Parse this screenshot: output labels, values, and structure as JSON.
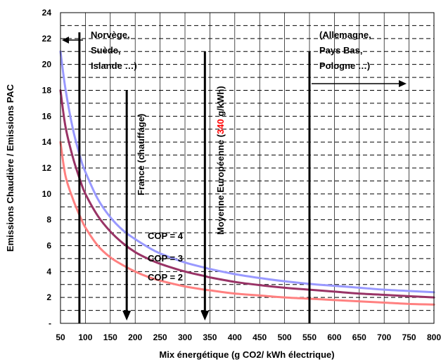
{
  "chart_data": {
    "type": "line",
    "xlabel": "Mix énergétique (g CO2/ kWh électrique)",
    "ylabel": "Emissions Chaudière / Emissions PAC",
    "xlim": [
      50,
      800
    ],
    "ylim": [
      0,
      24
    ],
    "x_ticks": [
      50,
      100,
      150,
      200,
      250,
      300,
      350,
      400,
      450,
      500,
      550,
      600,
      650,
      700,
      750,
      800
    ],
    "y_ticks": [
      0,
      2,
      4,
      6,
      8,
      10,
      12,
      14,
      16,
      18,
      20,
      22,
      24
    ],
    "y_tick_labels": [
      "-",
      "2",
      "4",
      "6",
      "8",
      "10",
      "12",
      "14",
      "16",
      "18",
      "20",
      "22",
      "24"
    ],
    "grid": "horizontal dashed",
    "x": [
      50,
      60,
      75,
      90,
      100,
      125,
      150,
      175,
      200,
      225,
      250,
      300,
      340,
      350,
      400,
      450,
      500,
      550,
      600,
      650,
      700,
      750,
      800
    ],
    "series": [
      {
        "name": "COP = 4",
        "color": "#9999ff",
        "values": [
          21,
          18.1,
          15.0,
          12.8,
          11.7,
          9.6,
          8.2,
          7.2,
          6.5,
          5.9,
          5.4,
          4.7,
          4.3,
          4.2,
          3.8,
          3.5,
          3.25,
          3.05,
          2.9,
          2.75,
          2.6,
          2.5,
          2.4
        ]
      },
      {
        "name": "COP = 3",
        "color": "#993366",
        "values": [
          18,
          15.2,
          12.8,
          11.0,
          10.0,
          8.3,
          7.1,
          6.2,
          5.5,
          5.0,
          4.6,
          4.0,
          3.65,
          3.55,
          3.2,
          2.95,
          2.75,
          2.6,
          2.45,
          2.3,
          2.2,
          2.1,
          2.0
        ]
      },
      {
        "name": "COP = 2",
        "color": "#ff8080",
        "values": [
          14,
          11.4,
          9.6,
          8.2,
          7.4,
          6.0,
          5.1,
          4.5,
          4.0,
          3.6,
          3.3,
          2.85,
          2.6,
          2.55,
          2.3,
          2.15,
          2.0,
          1.9,
          1.8,
          1.7,
          1.6,
          1.5,
          1.45
        ]
      }
    ],
    "reference_lines": [
      {
        "x": 88,
        "label": [
          "Norvège,",
          "Suède,",
          "Islande …)"
        ],
        "arrow": "left"
      },
      {
        "x": 183,
        "label": "France (chauffage)",
        "arrow": "down"
      },
      {
        "x": 340,
        "label": [
          "Moyenne Européenne (",
          "340",
          " g/kWh)"
        ],
        "highlight": "340",
        "highlight_color": "#ff0000",
        "arrow": "down"
      },
      {
        "x": 550,
        "label": [
          "(Allemagne,",
          "Pays Bas,",
          "Pologne …)"
        ],
        "arrow": "right"
      }
    ]
  }
}
